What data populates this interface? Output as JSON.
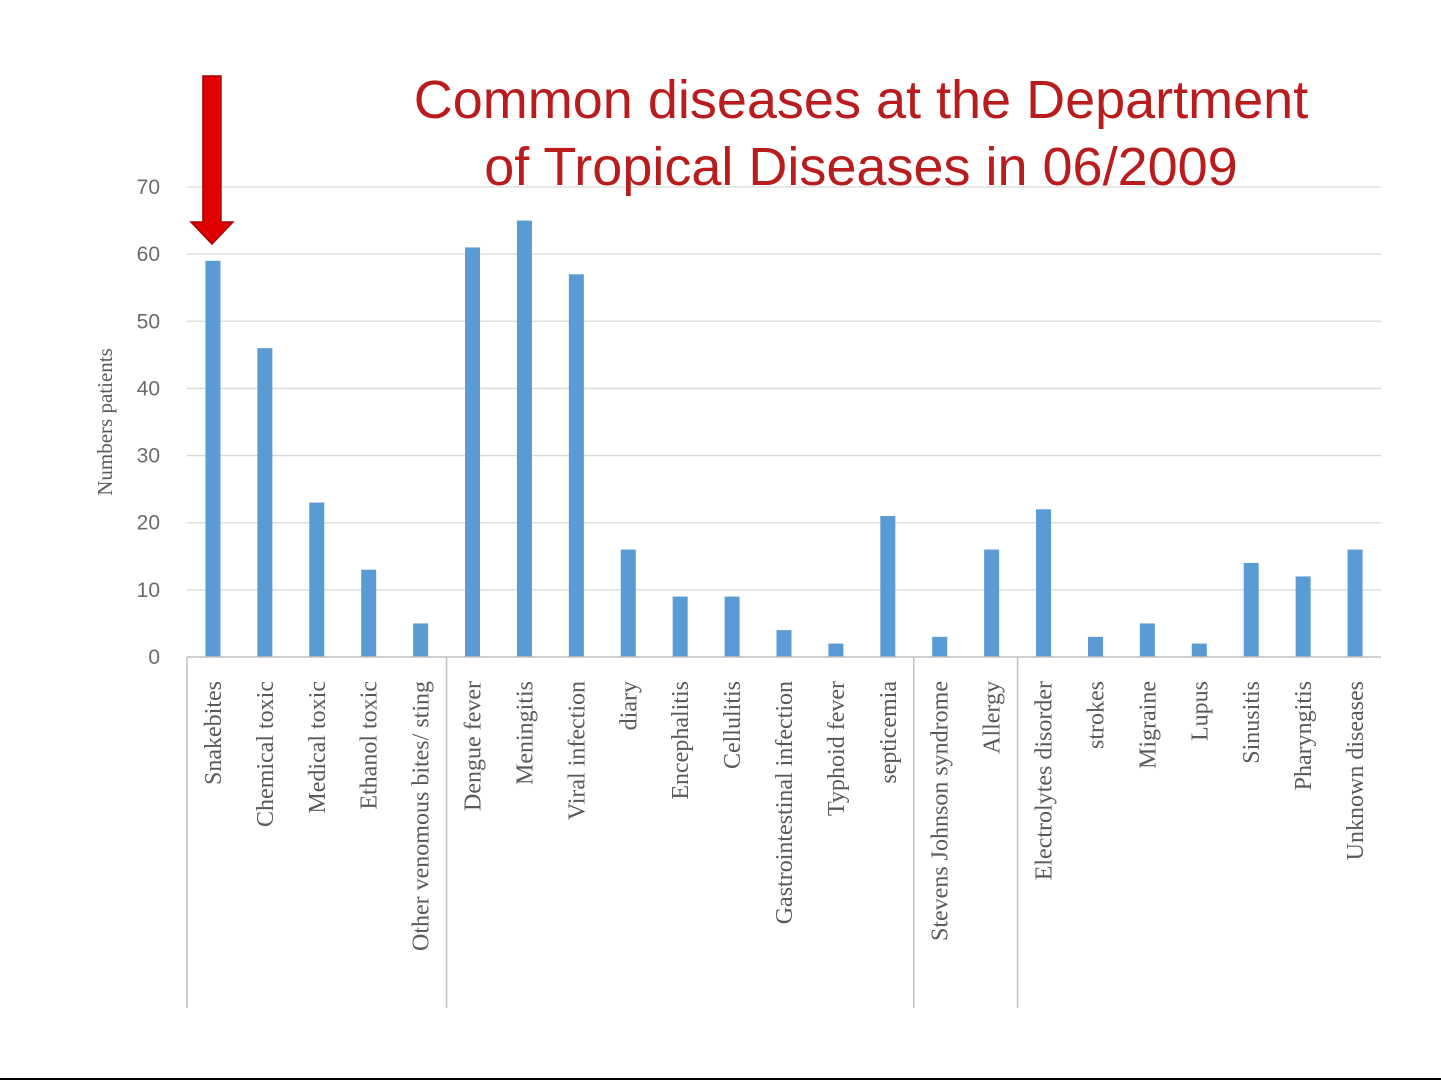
{
  "chart_data": {
    "type": "bar",
    "title_lines": [
      "Common diseases at the Department",
      "of Tropical Diseases in 06/2009"
    ],
    "ylabel": "Numbers patients",
    "xlabel": "",
    "ylim": [
      0,
      70
    ],
    "yticks": [
      0,
      10,
      20,
      30,
      40,
      50,
      60,
      70
    ],
    "grid": true,
    "legend": "none",
    "bar_color": "#5b9bd5",
    "title_color": "#b91c1c",
    "arrow_color": "#e00000",
    "arrow_target": "Snakebites",
    "categories": [
      "Snakebites",
      "Chemical toxic",
      "Medical toxic",
      "Ethanol toxic",
      "Other venomous bites/ sting",
      "Dengue fever",
      "Meningitis",
      "Viral infection",
      "diary",
      "Encephalitis",
      "Cellulitis",
      "Gastrointestinal infection",
      "Typhoid fever",
      "septicemia",
      "Stevens Johnson syndrome",
      "Allergy",
      "Electrolytes disorder",
      "strokes",
      "Migraine",
      "Lupus",
      "Sinusitis",
      "Pharyngitis",
      "Unknown diseases"
    ],
    "values": [
      59,
      46,
      23,
      13,
      5,
      61,
      65,
      57,
      16,
      9,
      9,
      4,
      2,
      21,
      3,
      16,
      22,
      3,
      5,
      2,
      14,
      12,
      16
    ],
    "group_breaks_after": [
      "Other venomous bites/ sting",
      "septicemia",
      "Allergy"
    ]
  }
}
